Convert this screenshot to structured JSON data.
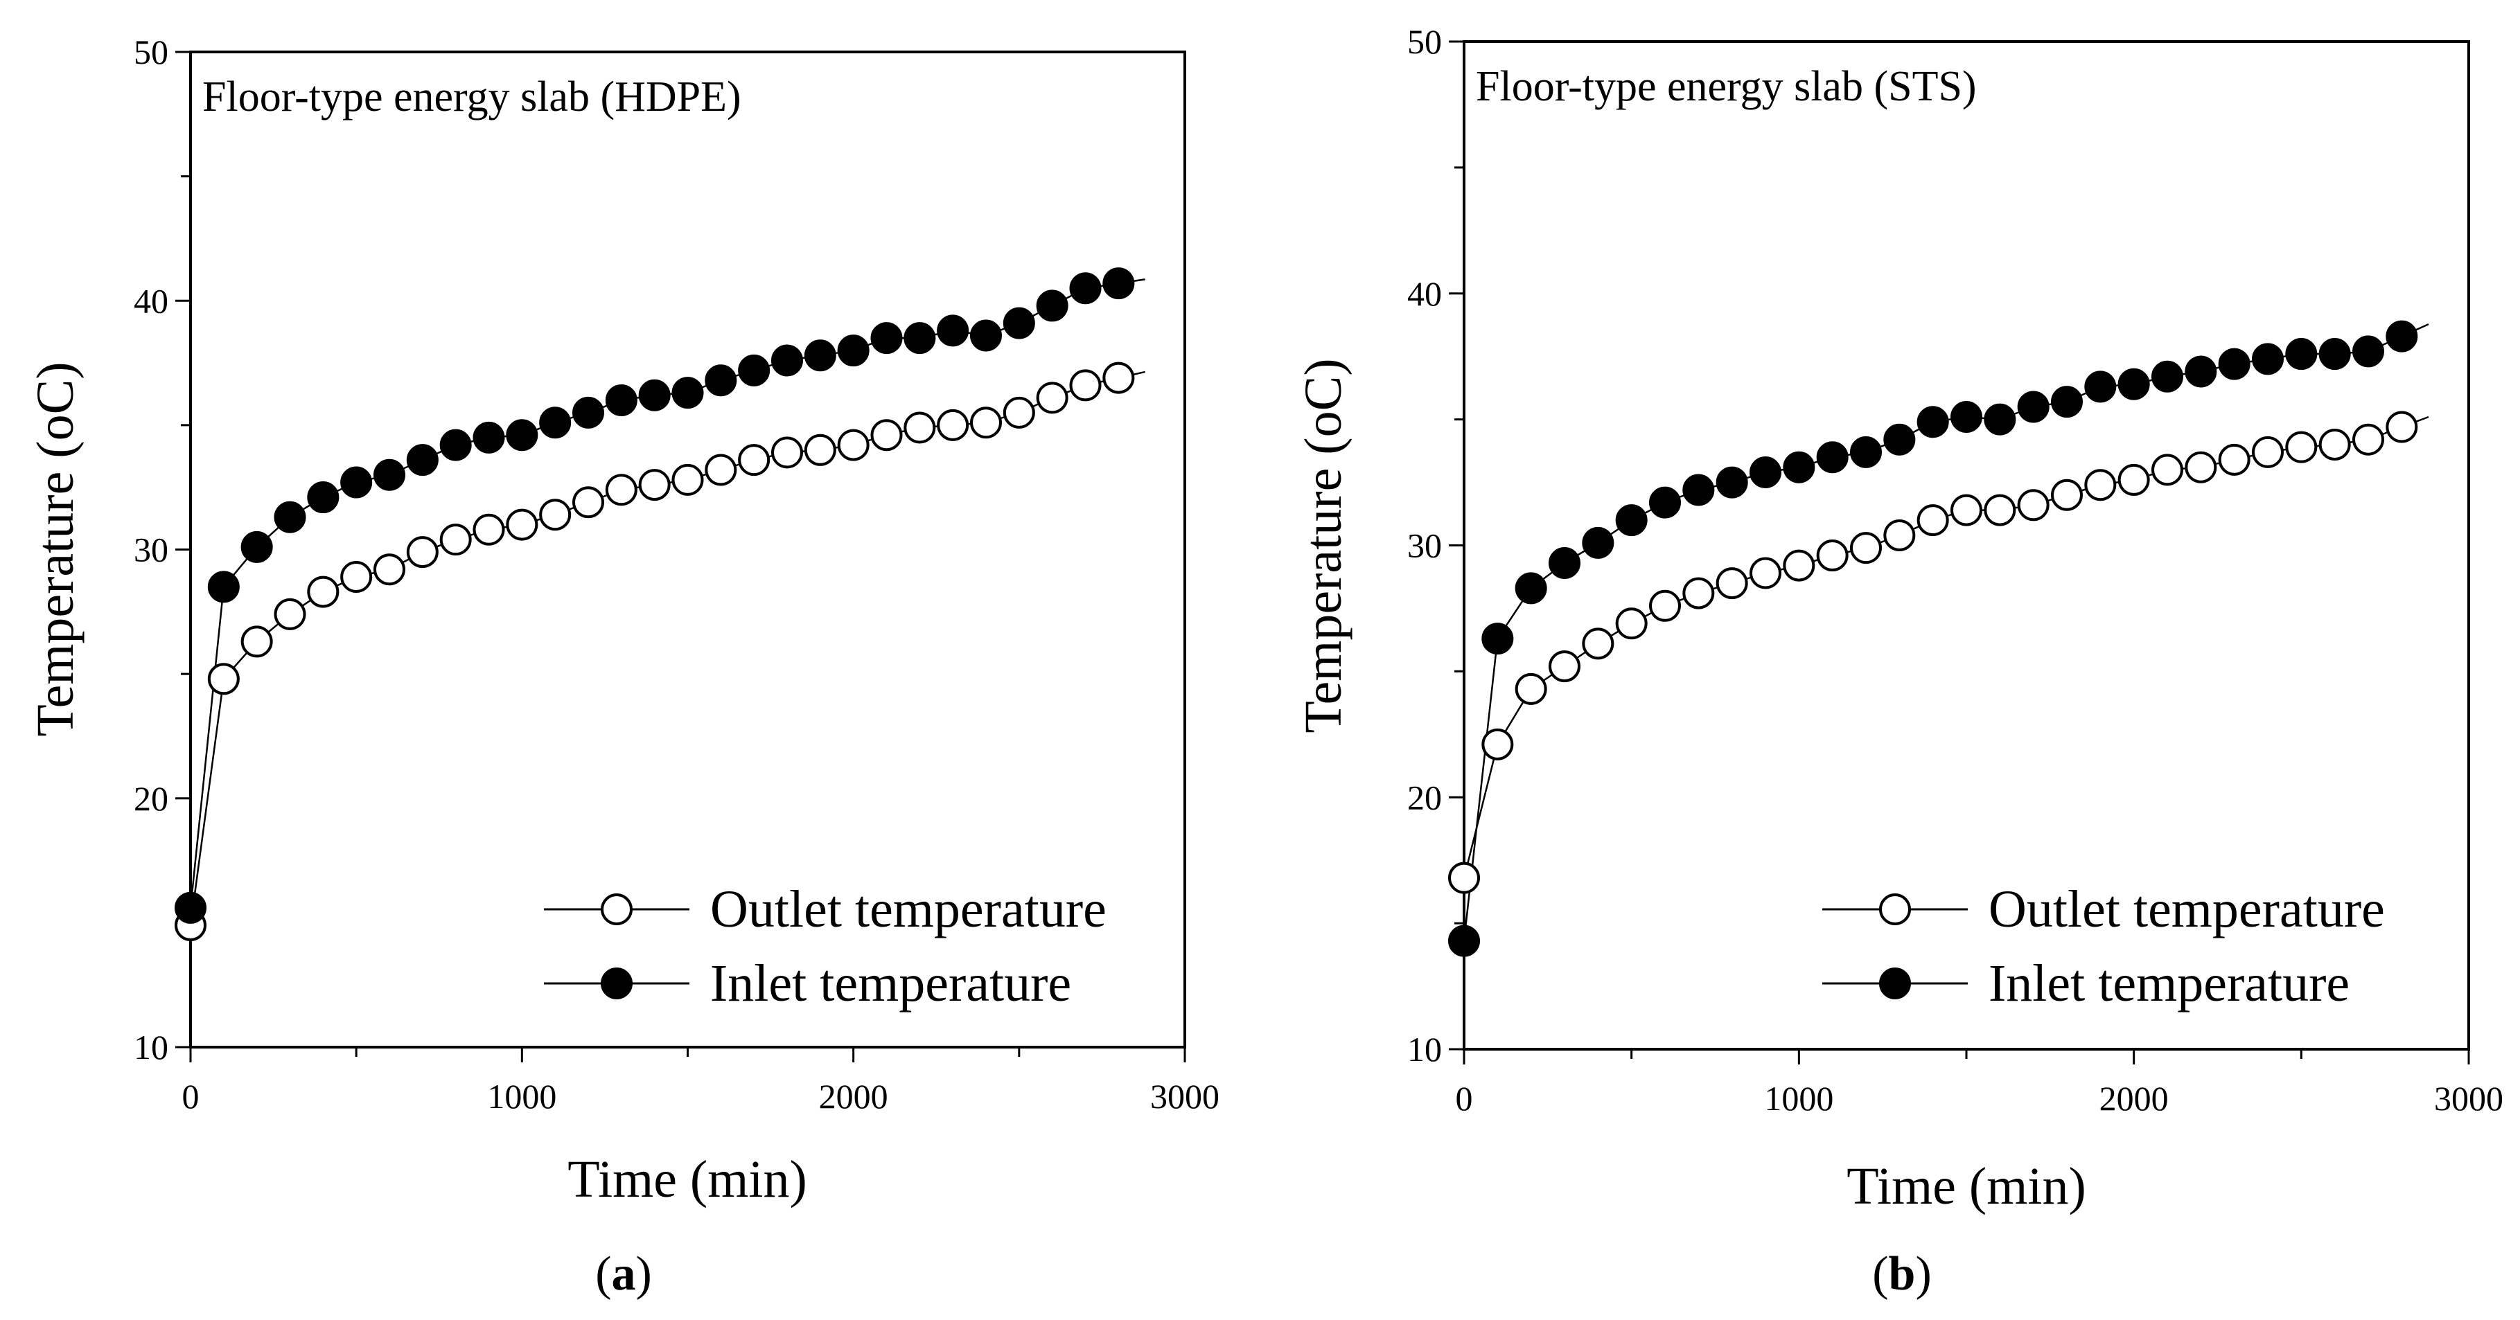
{
  "chart_data": [
    {
      "type": "scatter",
      "panel_label": "a",
      "title": "Floor-type energy slab (HDPE)",
      "xlabel": "Time (min)",
      "ylabel": "Temperature (oC)",
      "xlim": [
        0,
        3000
      ],
      "ylim": [
        10,
        50
      ],
      "xticks": [
        0,
        1000,
        2000,
        3000
      ],
      "yticks": [
        10,
        20,
        30,
        40,
        50
      ],
      "legend_position": "bottom-right",
      "series": [
        {
          "name": "Outlet temperature",
          "marker": "open-circle",
          "x": [
            0,
            100,
            200,
            300,
            400,
            500,
            600,
            700,
            800,
            900,
            1000,
            1100,
            1200,
            1300,
            1400,
            1500,
            1600,
            1700,
            1800,
            1900,
            2000,
            2100,
            2200,
            2300,
            2400,
            2500,
            2600,
            2700,
            2800
          ],
          "values": [
            14.9,
            24.8,
            26.3,
            27.4,
            28.3,
            28.9,
            29.2,
            29.9,
            30.4,
            30.8,
            31.0,
            31.4,
            31.9,
            32.4,
            32.6,
            32.8,
            33.2,
            33.6,
            33.9,
            34.0,
            34.2,
            34.6,
            34.9,
            35.0,
            35.1,
            35.5,
            36.1,
            36.6,
            36.9
          ]
        },
        {
          "name": "Inlet temperature",
          "marker": "filled-circle",
          "x": [
            0,
            100,
            200,
            300,
            400,
            500,
            600,
            700,
            800,
            900,
            1000,
            1100,
            1200,
            1300,
            1400,
            1500,
            1600,
            1700,
            1800,
            1900,
            2000,
            2100,
            2200,
            2300,
            2400,
            2500,
            2600,
            2700,
            2800
          ],
          "values": [
            15.6,
            28.5,
            30.1,
            31.3,
            32.1,
            32.7,
            33.0,
            33.6,
            34.2,
            34.5,
            34.6,
            35.1,
            35.5,
            36.0,
            36.2,
            36.3,
            36.8,
            37.2,
            37.6,
            37.8,
            38.0,
            38.5,
            38.5,
            38.8,
            38.6,
            39.1,
            39.8,
            40.5,
            40.7
          ]
        }
      ]
    },
    {
      "type": "scatter",
      "panel_label": "b",
      "title": "Floor-type energy slab (STS)",
      "xlabel": "Time (min)",
      "ylabel": "Temperature (oC)",
      "xlim": [
        0,
        3000
      ],
      "ylim": [
        10,
        50
      ],
      "xticks": [
        0,
        1000,
        2000,
        3000
      ],
      "yticks": [
        10,
        20,
        30,
        40,
        50
      ],
      "legend_position": "bottom-right",
      "series": [
        {
          "name": "Outlet temperature",
          "marker": "open-circle",
          "x": [
            0,
            100,
            200,
            300,
            400,
            500,
            600,
            700,
            800,
            900,
            1000,
            1100,
            1200,
            1300,
            1400,
            1500,
            1600,
            1700,
            1800,
            1900,
            2000,
            2100,
            2200,
            2300,
            2400,
            2500,
            2600,
            2700,
            2800
          ],
          "values": [
            16.8,
            22.1,
            24.3,
            25.2,
            26.1,
            26.9,
            27.6,
            28.1,
            28.5,
            28.9,
            29.2,
            29.6,
            29.9,
            30.4,
            31.0,
            31.4,
            31.4,
            31.6,
            32.0,
            32.4,
            32.6,
            33.0,
            33.1,
            33.4,
            33.7,
            33.9,
            34.0,
            34.2,
            34.7
          ]
        },
        {
          "name": "Inlet temperature",
          "marker": "filled-circle",
          "x": [
            0,
            100,
            200,
            300,
            400,
            500,
            600,
            700,
            800,
            900,
            1000,
            1100,
            1200,
            1300,
            1400,
            1500,
            1600,
            1700,
            1800,
            1900,
            2000,
            2100,
            2200,
            2300,
            2400,
            2500,
            2600,
            2700,
            2800
          ],
          "values": [
            14.3,
            26.3,
            28.3,
            29.3,
            30.1,
            31.0,
            31.7,
            32.2,
            32.5,
            32.9,
            33.1,
            33.5,
            33.7,
            34.2,
            34.9,
            35.1,
            35.0,
            35.5,
            35.7,
            36.3,
            36.4,
            36.7,
            36.9,
            37.2,
            37.4,
            37.6,
            37.6,
            37.7,
            38.3
          ]
        }
      ]
    }
  ]
}
